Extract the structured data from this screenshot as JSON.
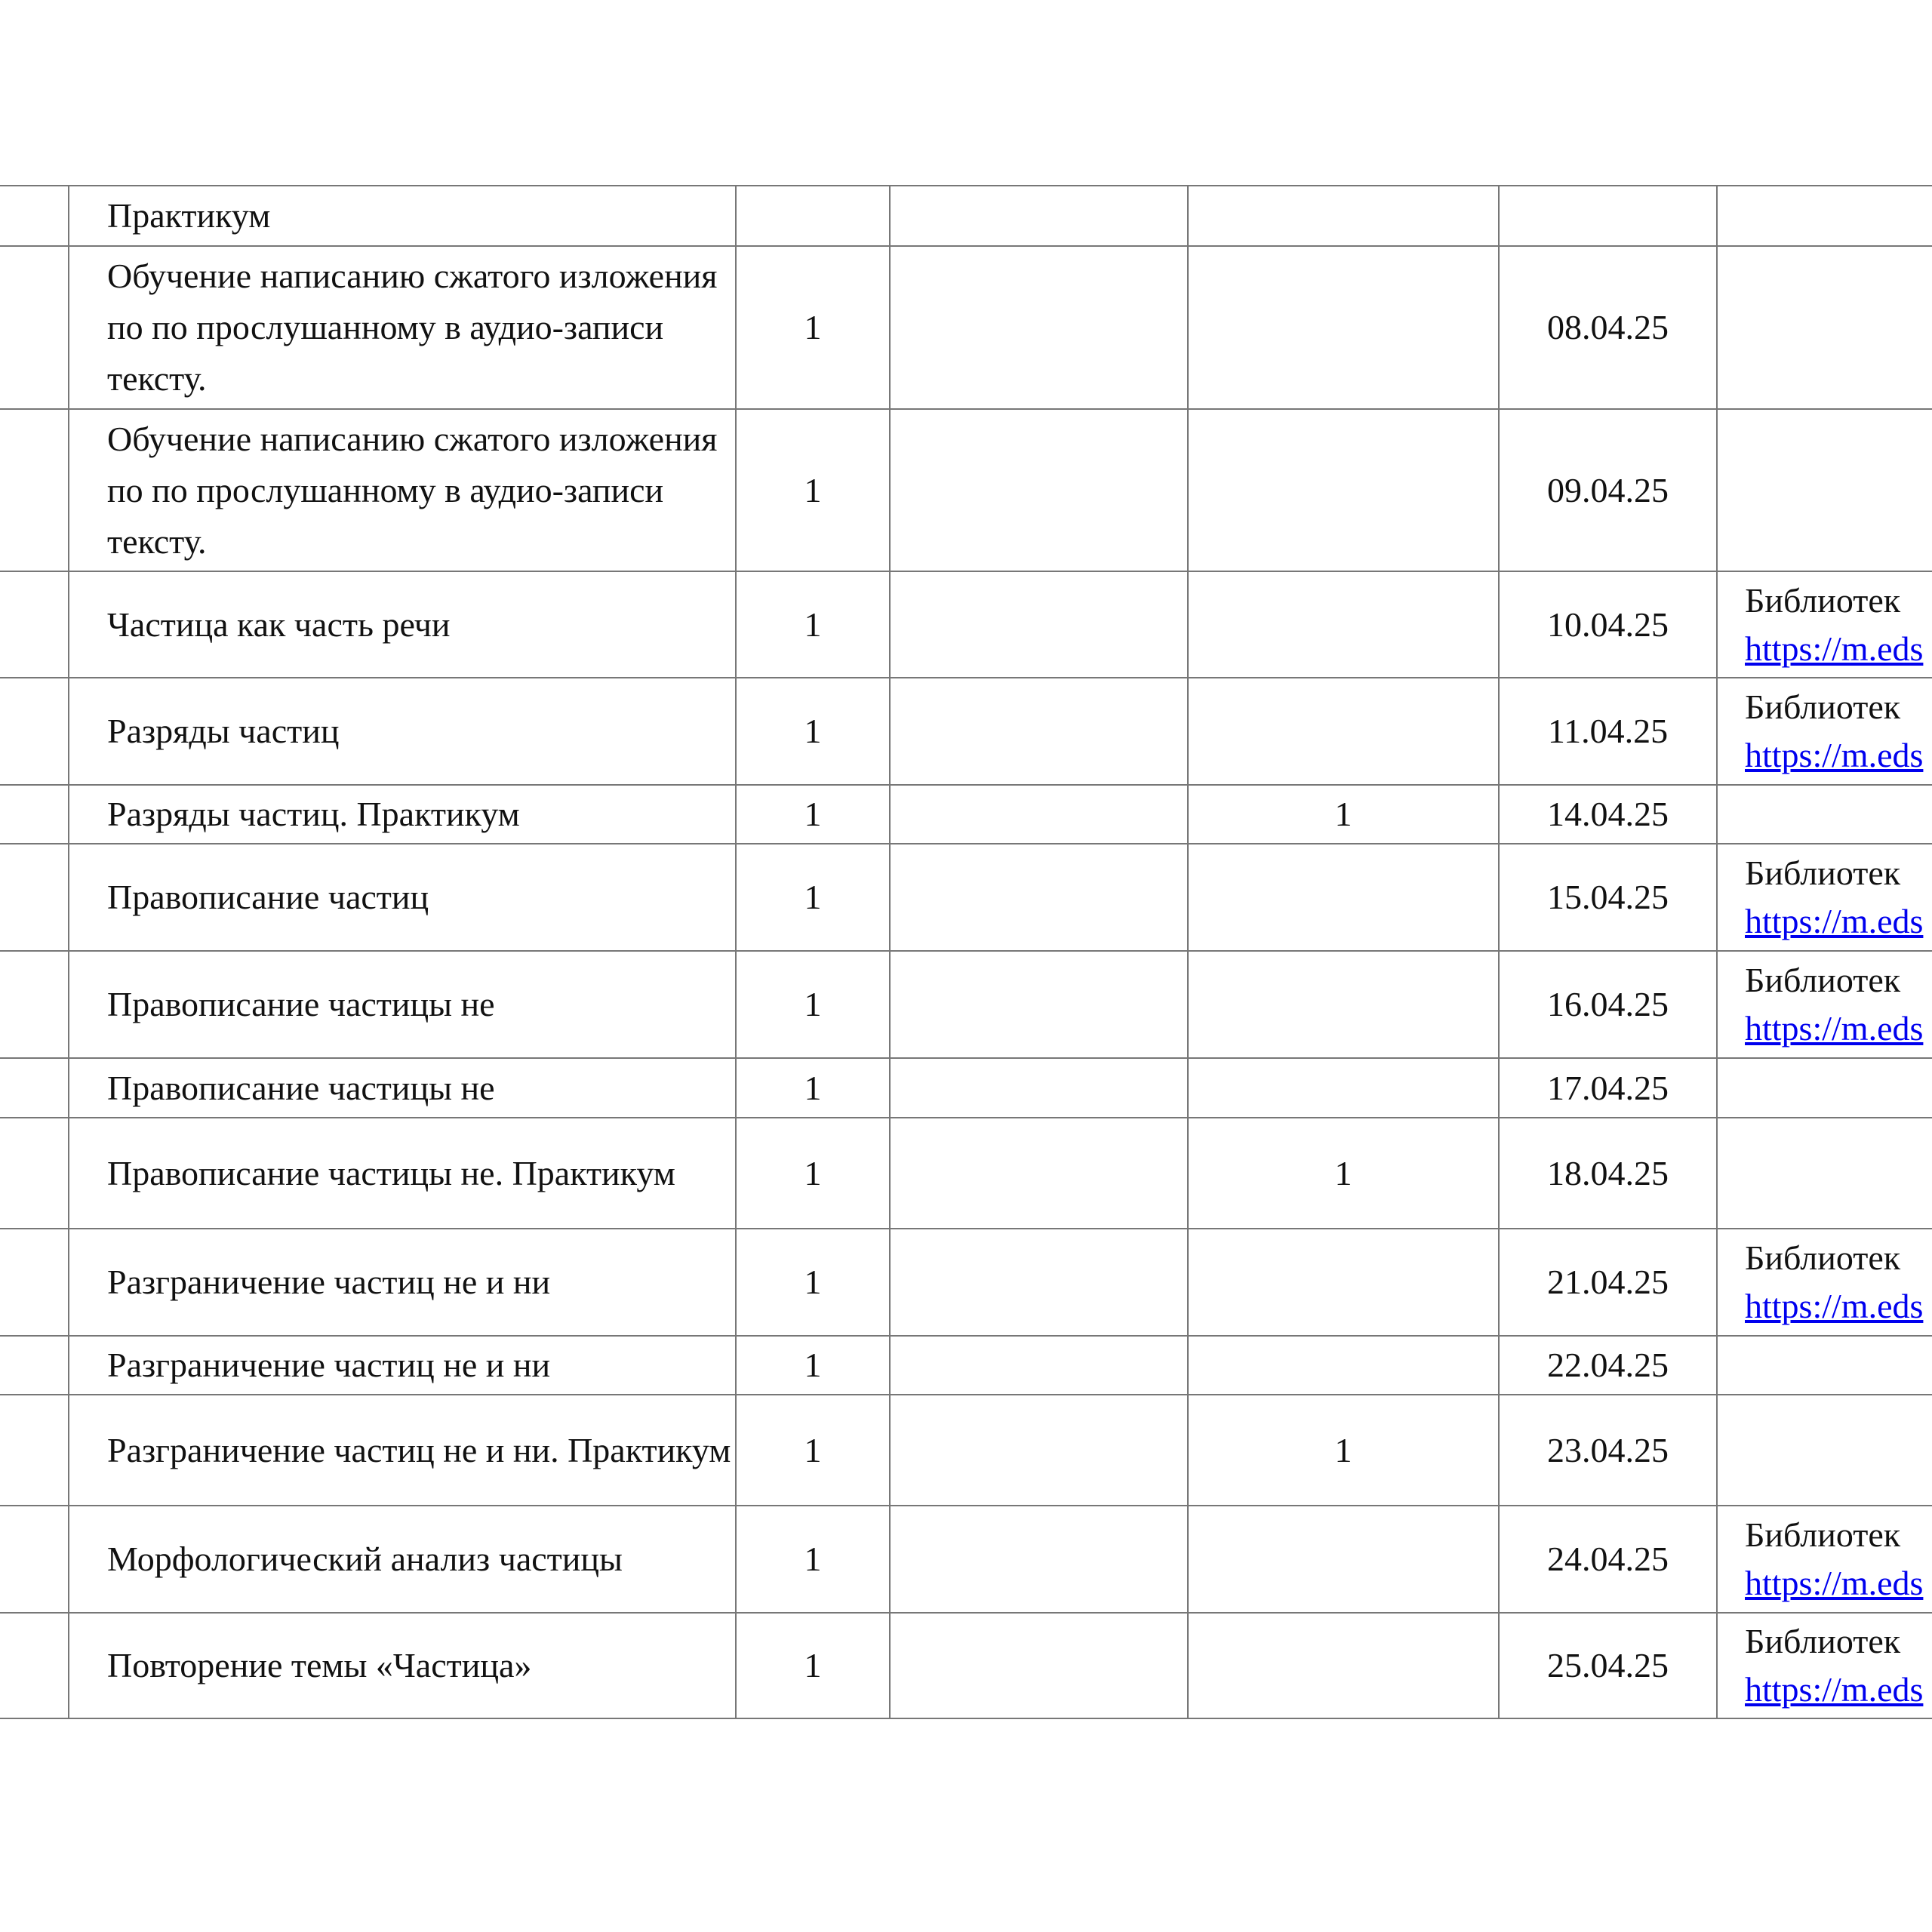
{
  "rows": [
    {
      "topic": "Практикум",
      "hours": "",
      "control": "",
      "practice": "",
      "date": "",
      "res_label": "",
      "res_link": ""
    },
    {
      "topic": "Обучение написанию сжатого изложения по по прослушанному в аудио-записи тексту.",
      "hours": "1",
      "control": "",
      "practice": "",
      "date": "08.04.25",
      "res_label": "",
      "res_link": ""
    },
    {
      "topic": "Обучение написанию сжатого изложения по по прослушанному в аудио-записи тексту.",
      "hours": "1",
      "control": "",
      "practice": "",
      "date": "09.04.25",
      "res_label": "",
      "res_link": ""
    },
    {
      "topic": "Частица как часть речи",
      "hours": "1",
      "control": "",
      "practice": "",
      "date": "10.04.25",
      "res_label": "Библиотек",
      "res_link": "https://m.eds"
    },
    {
      "topic": "Разряды частиц",
      "hours": "1",
      "control": "",
      "practice": "",
      "date": "11.04.25",
      "res_label": "Библиотек",
      "res_link": "https://m.eds"
    },
    {
      "topic": "Разряды частиц. Практикум",
      "hours": "1",
      "control": "",
      "practice": "1",
      "date": "14.04.25",
      "res_label": "",
      "res_link": ""
    },
    {
      "topic": "Правописание частиц",
      "hours": "1",
      "control": "",
      "practice": "",
      "date": "15.04.25",
      "res_label": "Библиотек",
      "res_link": "https://m.eds"
    },
    {
      "topic": "Правописание частицы не",
      "hours": "1",
      "control": "",
      "practice": "",
      "date": "16.04.25",
      "res_label": "Библиотек",
      "res_link": "https://m.eds"
    },
    {
      "topic": "Правописание частицы не",
      "hours": "1",
      "control": "",
      "practice": "",
      "date": "17.04.25",
      "res_label": "",
      "res_link": ""
    },
    {
      "topic": "Правописание частицы не. Практикум",
      "hours": "1",
      "control": "",
      "practice": "1",
      "date": "18.04.25",
      "res_label": "",
      "res_link": ""
    },
    {
      "topic": "Разграничение частиц не и ни",
      "hours": "1",
      "control": "",
      "practice": "",
      "date": "21.04.25",
      "res_label": "Библиотек",
      "res_link": "https://m.eds"
    },
    {
      "topic": "Разграничение частиц не и ни",
      "hours": "1",
      "control": "",
      "practice": "",
      "date": "22.04.25",
      "res_label": "",
      "res_link": ""
    },
    {
      "topic": "Разграничение частиц не и ни. Практикум",
      "hours": "1",
      "control": "",
      "practice": "1",
      "date": "23.04.25",
      "res_label": "",
      "res_link": ""
    },
    {
      "topic": "Морфологический анализ частицы",
      "hours": "1",
      "control": "",
      "practice": "",
      "date": "24.04.25",
      "res_label": "Библиотек",
      "res_link": "https://m.eds"
    },
    {
      "topic": "Повторение темы «Частица»",
      "hours": "1",
      "control": "",
      "practice": "",
      "date": "25.04.25",
      "res_label": "Библиотек",
      "res_link": "https://m.eds"
    }
  ],
  "colors": {
    "border": "#777777",
    "link": "#0000ee",
    "text": "#111111"
  }
}
